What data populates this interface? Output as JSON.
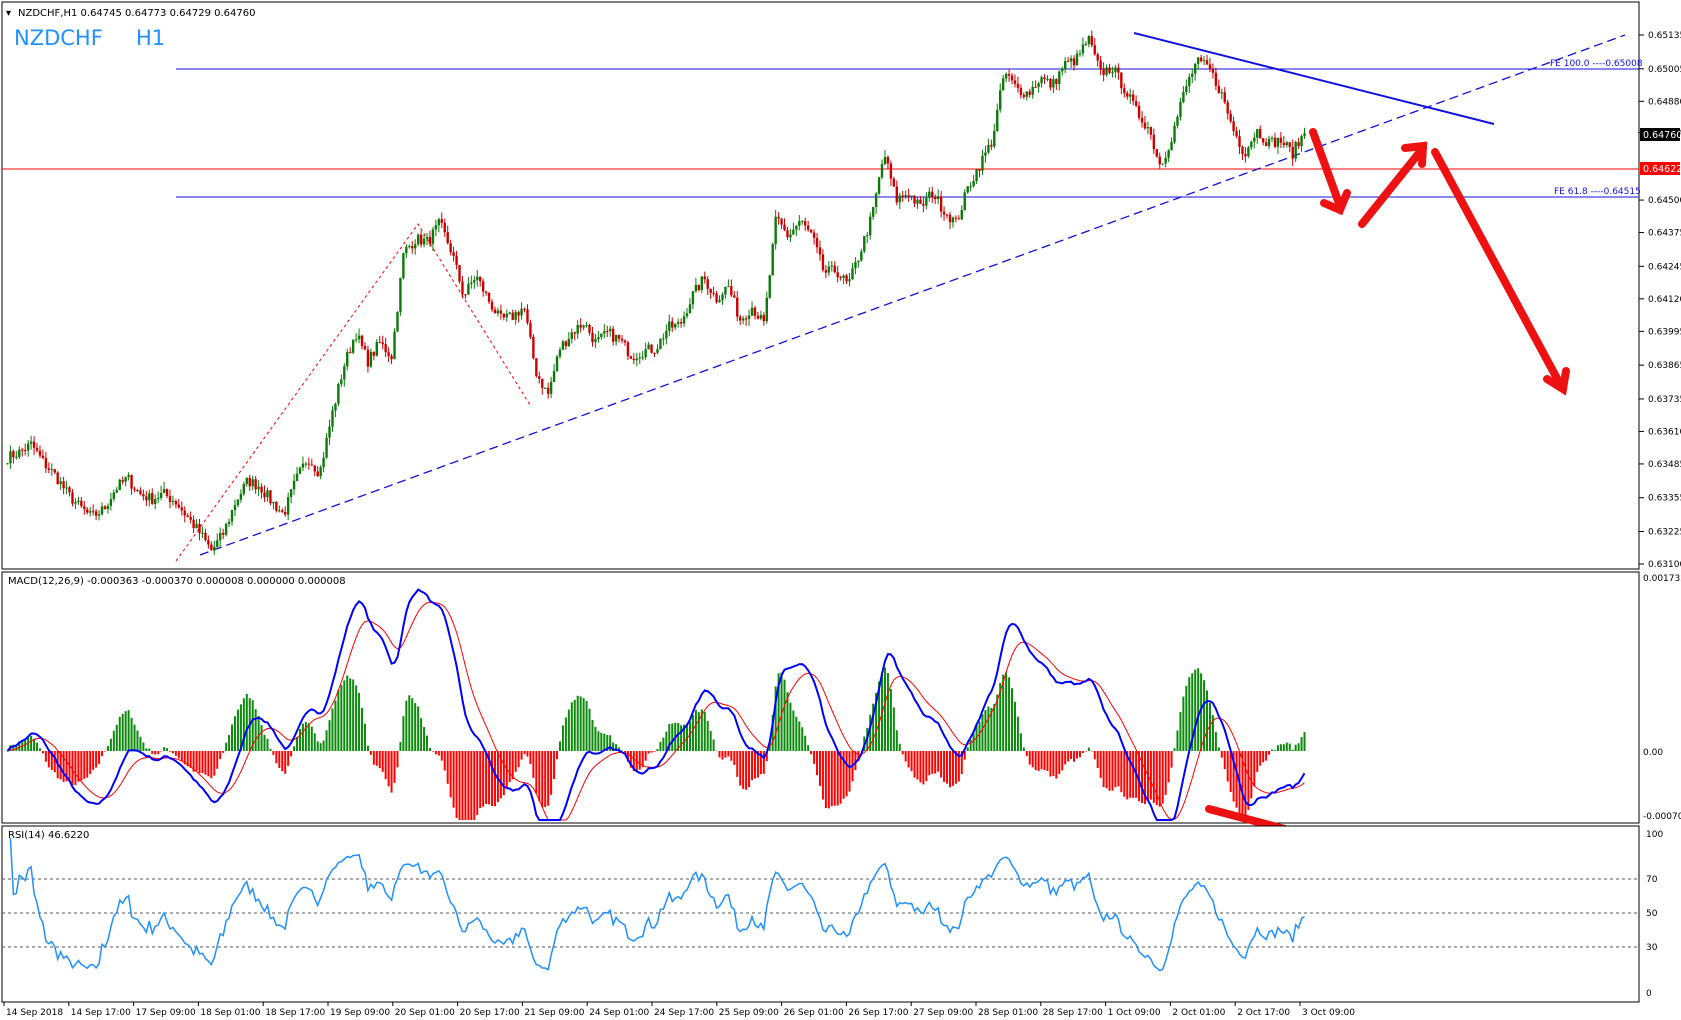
{
  "header": {
    "symbol_line": "NZDCHF,H1  0.64745 0.64773 0.64729 0.64760",
    "big_label_symbol": "NZDCHF",
    "big_label_tf": "H1"
  },
  "colors": {
    "bull": "#0b7a0b",
    "bear": "#cc0000",
    "blue": "#1010e0",
    "red_line": "#ff0000",
    "arrow": "#ee0000",
    "macd_line": "#0000ff",
    "signal_line": "#ff0000",
    "hist_pos": "#0b8a0b",
    "hist_neg": "#ff0000",
    "rsi_line": "#1e90ff",
    "label_blue": "#1e90ff"
  },
  "chart_data": [
    {
      "type": "candlestick",
      "title": "NZDCHF,H1",
      "symbol": "NZDCHF",
      "timeframe": "H1",
      "quote": {
        "open": 0.64745,
        "high": 0.64773,
        "low": 0.64729,
        "close": 0.6476
      },
      "y_ticks": [
        "0.65135",
        "0.65005",
        "0.64880",
        "0.64760",
        "0.64500",
        "0.64375",
        "0.64245",
        "0.64120",
        "0.63995",
        "0.63865",
        "0.63735",
        "0.63610",
        "0.63485",
        "0.63355",
        "0.63225",
        "0.63100"
      ],
      "current_price": "0.64760",
      "red_level": "0.64622",
      "fe_levels": [
        {
          "label": "FE 100.0 ----0.65008",
          "value": 0.65008
        },
        {
          "label": "FE 61.8 ----0.64515",
          "value": 0.64515
        }
      ],
      "x_labels": [
        "14 Sep 2018",
        "14 Sep 17:00",
        "17 Sep 09:00",
        "18 Sep 01:00",
        "18 Sep 17:00",
        "19 Sep 09:00",
        "20 Sep 01:00",
        "20 Sep 17:00",
        "21 Sep 09:00",
        "24 Sep 01:00",
        "24 Sep 17:00",
        "25 Sep 09:00",
        "26 Sep 01:00",
        "26 Sep 17:00",
        "27 Sep 09:00",
        "28 Sep 01:00",
        "28 Sep 17:00",
        "1 Oct 09:00",
        "2 Oct 01:00",
        "2 Oct 17:00",
        "3 Oct 09:00"
      ],
      "closes": [
        0.6351,
        0.6353,
        0.6356,
        0.6349,
        0.6344,
        0.6337,
        0.6332,
        0.6328,
        0.6331,
        0.6339,
        0.6343,
        0.6337,
        0.6335,
        0.6337,
        0.6334,
        0.6328,
        0.6322,
        0.6315,
        0.6322,
        0.6334,
        0.6342,
        0.634,
        0.6334,
        0.6329,
        0.6342,
        0.6351,
        0.6345,
        0.6367,
        0.6386,
        0.6399,
        0.6388,
        0.6395,
        0.639,
        0.643,
        0.6435,
        0.6434,
        0.6441,
        0.643,
        0.6413,
        0.6421,
        0.6412,
        0.6404,
        0.6405,
        0.6409,
        0.6384,
        0.6375,
        0.6393,
        0.6399,
        0.6403,
        0.6395,
        0.6399,
        0.6396,
        0.639,
        0.6392,
        0.6393,
        0.6401,
        0.6402,
        0.6413,
        0.642,
        0.6412,
        0.6417,
        0.6404,
        0.6409,
        0.6402,
        0.6443,
        0.6436,
        0.6442,
        0.6436,
        0.6422,
        0.6423,
        0.6417,
        0.643,
        0.6444,
        0.6468,
        0.645,
        0.6453,
        0.6447,
        0.6453,
        0.6446,
        0.6441,
        0.6455,
        0.6464,
        0.6473,
        0.6499,
        0.6493,
        0.6491,
        0.6497,
        0.6494,
        0.6502,
        0.6504,
        0.6512,
        0.6499,
        0.6501,
        0.6493,
        0.6484,
        0.6478,
        0.6463,
        0.6475,
        0.6492,
        0.6503,
        0.6501,
        0.6492,
        0.6478,
        0.6468,
        0.6477,
        0.6472,
        0.6473,
        0.6468,
        0.6476
      ],
      "ma_lines_pixel_independent_note": "",
      "indicators": [
        {
          "name": "MACD(12,26,9)",
          "header": "MACD(12,26,9) -0.000363 -0.000370 0.000008 0.000000 0.000008",
          "y_ticks": [
            "0.001732",
            "0.00",
            "-0.000706"
          ]
        },
        {
          "name": "RSI(14)",
          "header": "RSI(14) 46.6220",
          "levels": [
            30,
            50,
            70
          ],
          "y_ticks": [
            "100",
            "70",
            "50",
            "30",
            "0"
          ]
        }
      ]
    }
  ]
}
